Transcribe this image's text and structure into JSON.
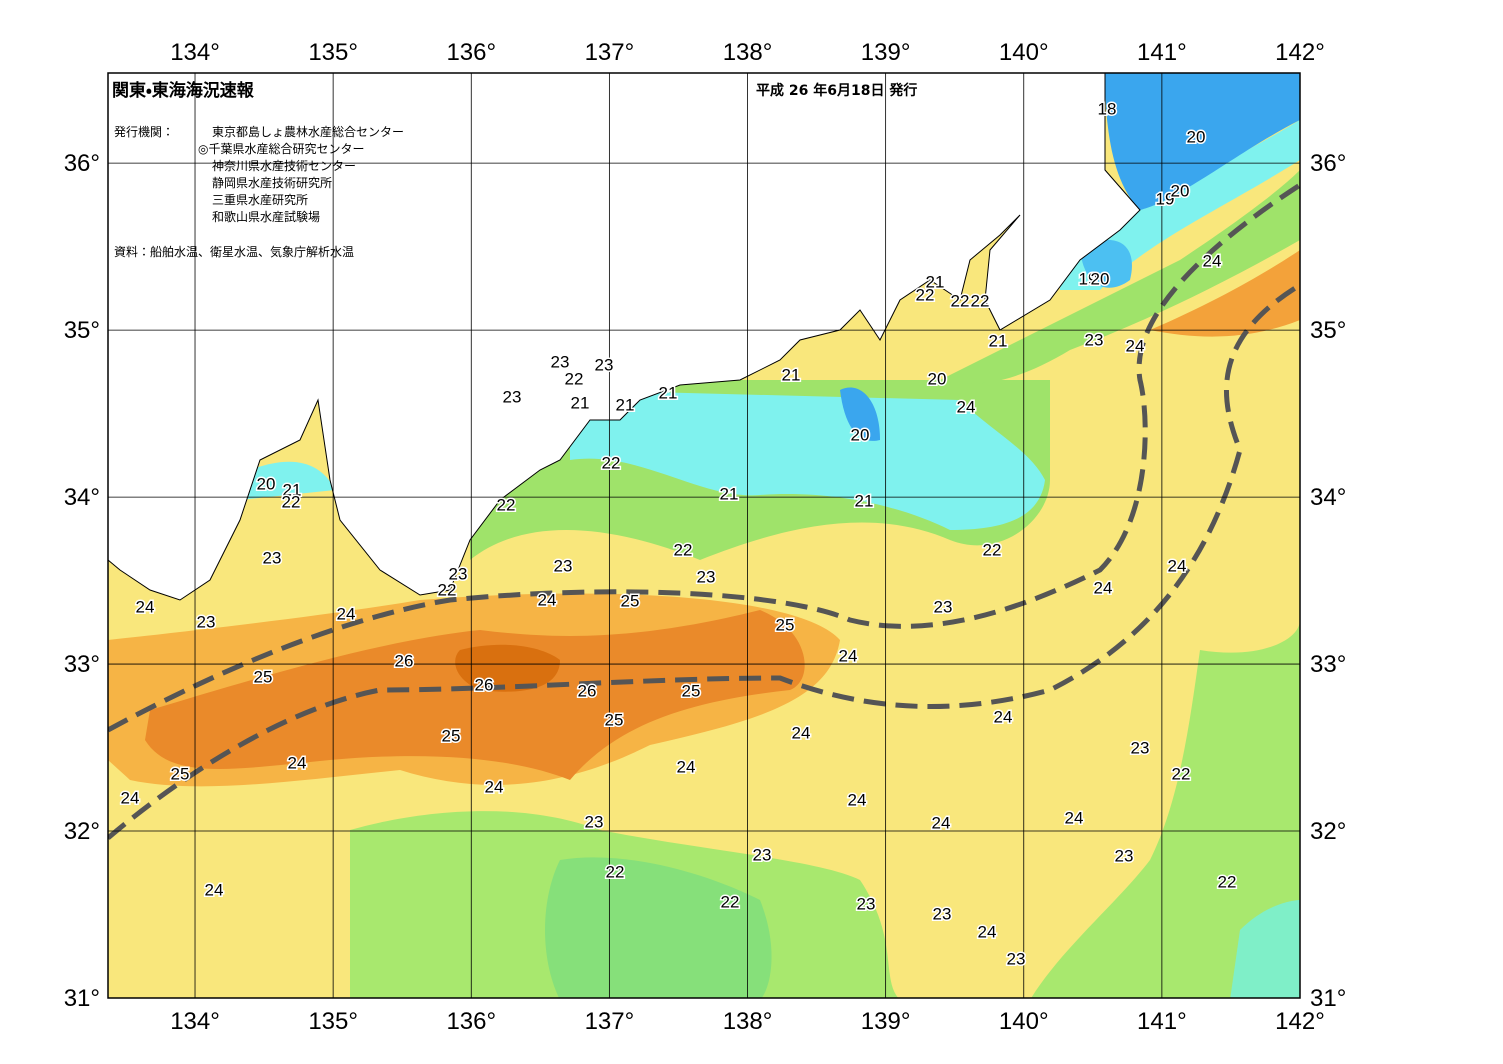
{
  "header": {
    "title": "関東・東海海況速報",
    "date": "平成 26 年6月18日 発行"
  },
  "issuers": {
    "label": "発行機関：",
    "names": [
      "東京都島しょ農林水産総合センター",
      "◎千葉県水産総合研究センター",
      "神奈川県水産技術センター",
      "静岡県水産技術研究所",
      "三重県水産研究所",
      "和歌山県水産試験場"
    ]
  },
  "source": "資料：船舶水温、衛星水温、気象庁解析水温",
  "map": {
    "xlim": [
      133.37,
      142
    ],
    "ylim": [
      31,
      36.54
    ],
    "xticks": [
      {
        "value": 134,
        "label": "134°"
      },
      {
        "value": 135,
        "label": "135°"
      },
      {
        "value": 136,
        "label": "136°"
      },
      {
        "value": 137,
        "label": "137°"
      },
      {
        "value": 138,
        "label": "138°"
      },
      {
        "value": 139,
        "label": "139°"
      },
      {
        "value": 140,
        "label": "140°"
      },
      {
        "value": 141,
        "label": "141°"
      },
      {
        "value": 142,
        "label": "142°"
      }
    ],
    "yticks": [
      {
        "value": 31,
        "label": "31°"
      },
      {
        "value": 32,
        "label": "32°"
      },
      {
        "value": 33,
        "label": "33°"
      },
      {
        "value": 34,
        "label": "34°"
      },
      {
        "value": 35,
        "label": "35°"
      },
      {
        "value": 36,
        "label": "36°"
      }
    ],
    "contour_labels": [
      18,
      20,
      19,
      20,
      24,
      19,
      20,
      21,
      22,
      22,
      22,
      23,
      24,
      21,
      20,
      24,
      21,
      21,
      20,
      23,
      23,
      22,
      23,
      21,
      21,
      22,
      21,
      21,
      20,
      21,
      22,
      22,
      22,
      22,
      23,
      23,
      23,
      22,
      23,
      24,
      24,
      24,
      23,
      24,
      24,
      25,
      25,
      23,
      24,
      26,
      25,
      26,
      26,
      25,
      25,
      24,
      25,
      24,
      23,
      24,
      25,
      24,
      22,
      24,
      24,
      24,
      24,
      23,
      24,
      23,
      23,
      22,
      24,
      22,
      22,
      23,
      23,
      24,
      23
    ]
  }
}
